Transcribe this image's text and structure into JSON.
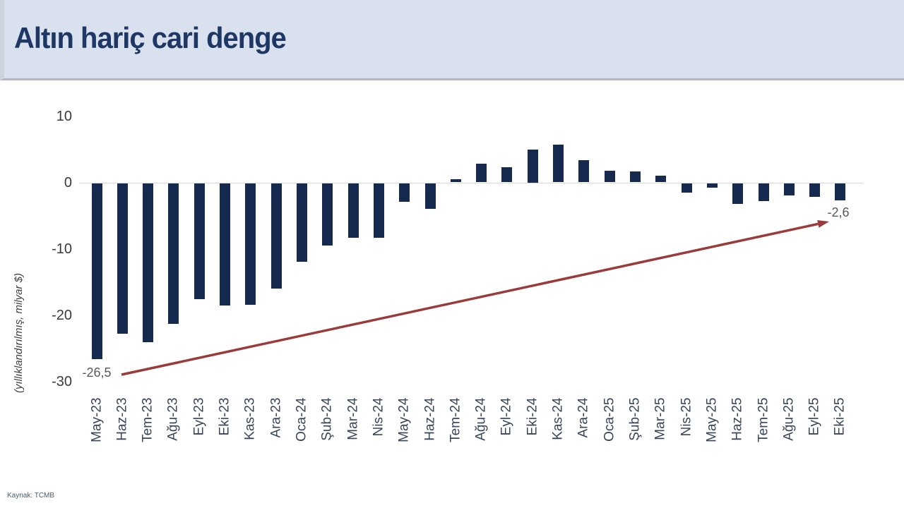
{
  "header": {
    "title": "Altın hariç cari denge"
  },
  "source_note": "Kaynak: TCMB",
  "colors": {
    "bar": "#16294e",
    "header_bg": "#d9e1ee",
    "title": "#1e3765",
    "axis_line": "#d9d9d9",
    "tick_label": "#3a3a3a",
    "x_label": "#39455a",
    "data_label": "#595959",
    "arrow": "#9b3a3a"
  },
  "chart_data": {
    "type": "bar",
    "title": "Altın hariç cari denge",
    "xlabel": "",
    "ylabel": "(yıllıklandırılmış, milyar $)",
    "categories": [
      "May-23",
      "Haz-23",
      "Tem-23",
      "Ağu-23",
      "Eyl-23",
      "Eki-23",
      "Kas-23",
      "Ara-23",
      "Oca-24",
      "Şub-24",
      "Mar-24",
      "Nis-24",
      "May-24",
      "Haz-24",
      "Tem-24",
      "Ağu-24",
      "Eyl-24",
      "Eki-24",
      "Kas-24",
      "Ara-24",
      "Oca-25",
      "Şub-25",
      "Mar-25",
      "Nis-25",
      "May-25",
      "Haz-25",
      "Tem-25",
      "Ağu-25",
      "Eyl-25",
      "Eki-25"
    ],
    "values": [
      -26.5,
      -22.7,
      -24.0,
      -21.2,
      -17.5,
      -18.5,
      -18.4,
      -15.9,
      -11.9,
      -9.4,
      -8.2,
      -8.2,
      -2.8,
      -3.9,
      0.5,
      2.8,
      2.3,
      5.0,
      5.7,
      3.3,
      1.8,
      1.6,
      1.0,
      -1.4,
      -0.7,
      -3.1,
      -2.7,
      -1.9,
      -2.1,
      -2.6
    ],
    "yticks": [
      10,
      0,
      -10,
      -20,
      -30
    ],
    "ylim": [
      -30,
      10
    ],
    "grid": false,
    "legend": false,
    "annotations": [
      {
        "target": "May-23",
        "label": "-26,5"
      },
      {
        "target": "Eki-25",
        "label": "-2,6"
      }
    ],
    "trend_arrow": {
      "from": "May-23",
      "to": "Eki-25",
      "color": "#9b3a3a"
    }
  }
}
